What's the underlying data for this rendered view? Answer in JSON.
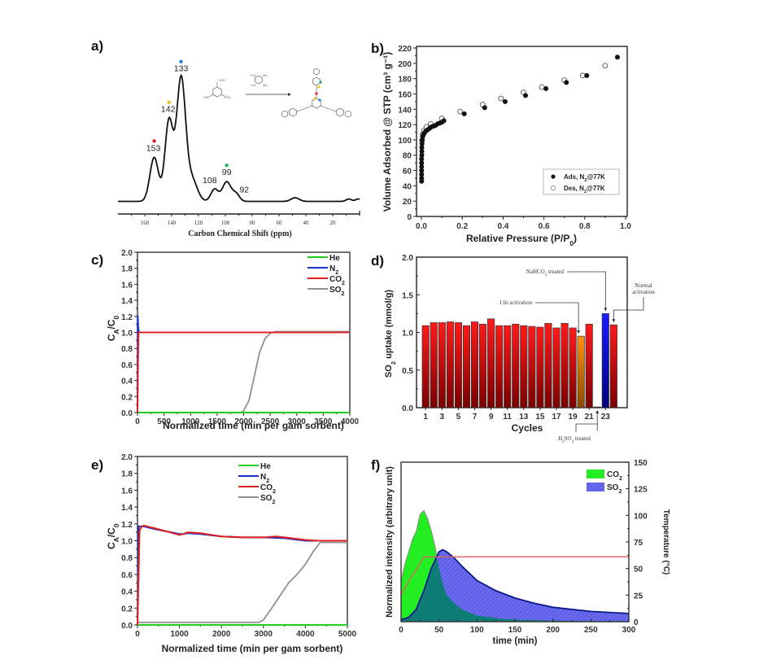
{
  "figure": {
    "panel_labels": [
      "a)",
      "b)",
      "c)",
      "d)",
      "e)",
      "f)"
    ]
  },
  "chart_data": [
    {
      "panel": "a",
      "type": "line",
      "title": "",
      "xlabel": "Carbon Chemical Shift  (ppm)",
      "ylabel": "",
      "xlim": [
        180,
        0
      ],
      "x_ticks": [
        160,
        140,
        120,
        100,
        80,
        60,
        40,
        20
      ],
      "x_tick_labels": [
        "160",
        "140",
        "120",
        "100",
        "80",
        "60",
        "40",
        "20"
      ],
      "grid": false,
      "peaks": [
        {
          "ppm": 153,
          "label": "153",
          "marker_color": "#e02020",
          "rel_height": 0.36
        },
        {
          "ppm": 142,
          "label": "142",
          "marker_color": "#f0c020",
          "rel_height": 0.66
        },
        {
          "ppm": 133,
          "label": "133",
          "marker_color": "#2080d0",
          "rel_height": 1.0
        },
        {
          "ppm": 108,
          "label": "108",
          "marker_color": "",
          "rel_height": 0.1
        },
        {
          "ppm": 99,
          "label": "99",
          "marker_color": "#20b060",
          "rel_height": 0.16
        },
        {
          "ppm": 92,
          "label": "92",
          "marker_color": "",
          "rel_height": 0.06
        }
      ],
      "minor_features_ppm": [
        48,
        8
      ],
      "annotation": "reaction scheme: trialdehyde + tetraaminobenzene → benzimidazole-linked polymer"
    },
    {
      "panel": "b",
      "type": "scatter",
      "title": "",
      "xlabel": "Relative Pressure (P/P₀)",
      "ylabel": "Volume Adsorbed @ STP (cm³ g⁻¹)",
      "xlim": [
        0,
        1.0
      ],
      "ylim": [
        0,
        220
      ],
      "x_ticks": [
        "0.0",
        "0.2",
        "0.4",
        "0.6",
        "0.8",
        "1.0"
      ],
      "y_ticks": [
        "0",
        "20",
        "40",
        "60",
        "80",
        "100",
        "120",
        "140",
        "160",
        "180",
        "200",
        "220"
      ],
      "legend_position": "bottom-right",
      "series": [
        {
          "name": "Ads, N₂@77K",
          "marker": "filled-circle",
          "x": [
            0.001,
            0.001,
            0.001,
            0.001,
            0.001,
            0.001,
            0.001,
            0.002,
            0.002,
            0.002,
            0.003,
            0.004,
            0.006,
            0.01,
            0.015,
            0.02,
            0.03,
            0.04,
            0.05,
            0.06,
            0.07,
            0.08,
            0.09,
            0.1,
            0.11,
            0.21,
            0.31,
            0.41,
            0.51,
            0.61,
            0.71,
            0.81,
            0.96
          ],
          "y": [
            46,
            50,
            55,
            60,
            65,
            70,
            75,
            80,
            85,
            90,
            95,
            100,
            104,
            107,
            109,
            111,
            113,
            115,
            117,
            118,
            119,
            121,
            122,
            123,
            125,
            134,
            142,
            150,
            158,
            167,
            175,
            184,
            208
          ]
        },
        {
          "name": "Des, N₂@77K",
          "marker": "open-circle",
          "x": [
            0.003,
            0.006,
            0.012,
            0.025,
            0.045,
            0.1,
            0.19,
            0.3,
            0.39,
            0.5,
            0.59,
            0.7,
            0.79,
            0.9
          ],
          "y": [
            99,
            107,
            112,
            117,
            121,
            128,
            137,
            146,
            154,
            162,
            169,
            178,
            184,
            197
          ]
        }
      ]
    },
    {
      "panel": "c",
      "type": "line",
      "title": "",
      "xlabel": "Normalized time (min per gam sorbent)",
      "ylabel": "Cₐ/C₀",
      "ylabel_parts": {
        "base": "C",
        "sub1": "A",
        "mid": "/C",
        "sub2": "0"
      },
      "xlim": [
        0,
        4000
      ],
      "ylim": [
        0,
        2.0
      ],
      "x_ticks": [
        "0",
        "500",
        "1000",
        "1500",
        "2000",
        "2500",
        "3000",
        "3500",
        "4000"
      ],
      "y_ticks": [
        "0.0",
        "0.2",
        "0.4",
        "0.6",
        "0.8",
        "1.0",
        "1.2",
        "1.4",
        "1.6",
        "1.8",
        "2.0"
      ],
      "legend_position": "top-right",
      "series": [
        {
          "name": "He",
          "color": "#22cc22",
          "x": [
            0,
            4000
          ],
          "y": [
            0.0,
            0.0
          ]
        },
        {
          "name": "N₂",
          "color": "#1a2ecc",
          "x": [
            0,
            5,
            10,
            20,
            40,
            4000
          ],
          "y": [
            0,
            1.21,
            1.1,
            1.02,
            1.0,
            1.0
          ]
        },
        {
          "name": "CO₂",
          "color": "#e02020",
          "x": [
            0,
            10,
            20,
            40,
            4000
          ],
          "y": [
            0,
            0.65,
            1.0,
            1.0,
            1.0
          ]
        },
        {
          "name": "SO₂",
          "color": "#909090",
          "x": [
            0,
            1950,
            2000,
            2100,
            2200,
            2250,
            2300,
            2400,
            2500,
            2600,
            2700,
            4000
          ],
          "y": [
            0.0,
            0.0,
            0.02,
            0.15,
            0.45,
            0.6,
            0.75,
            0.92,
            0.99,
            1.01,
            1.01,
            1.01
          ]
        }
      ]
    },
    {
      "panel": "d",
      "type": "bar",
      "title": "",
      "xlabel": "Cycles",
      "ylabel": "SO₂ uptake (mmol/g)",
      "ylim": [
        0,
        2.0
      ],
      "y_ticks": [
        "0.0",
        "0.5",
        "1.0",
        "1.5",
        "2.0"
      ],
      "x_tick_labels": [
        "1",
        "3",
        "5",
        "7",
        "9",
        "11",
        "13",
        "15",
        "17",
        "19",
        "21",
        "23"
      ],
      "categories": [
        1,
        2,
        3,
        4,
        5,
        6,
        7,
        8,
        9,
        10,
        11,
        12,
        13,
        14,
        15,
        16,
        17,
        18,
        19,
        20,
        21,
        22,
        23,
        24
      ],
      "values": [
        1.09,
        1.13,
        1.13,
        1.14,
        1.13,
        1.09,
        1.14,
        1.11,
        1.18,
        1.09,
        1.09,
        1.11,
        1.09,
        1.08,
        1.07,
        1.12,
        1.06,
        1.12,
        1.06,
        0.95,
        1.11,
        0.01,
        1.25,
        1.1
      ],
      "bar_colors": [
        "red",
        "red",
        "red",
        "red",
        "red",
        "red",
        "red",
        "red",
        "red",
        "red",
        "red",
        "red",
        "red",
        "red",
        "red",
        "red",
        "red",
        "red",
        "red",
        "orange",
        "red",
        "red",
        "blue",
        "red"
      ],
      "palette": {
        "red": "#ee1111",
        "orange": "#ff8c00",
        "blue": "#1111dd"
      },
      "annotations": [
        {
          "text": "1 hr activation",
          "target_cycle": 20
        },
        {
          "text": "NaHCO₃ treated",
          "target_cycle": 23
        },
        {
          "text": "Normal activation",
          "target_cycle": 24
        },
        {
          "text": "H₂SO₄ treated",
          "target_cycle": 22
        }
      ]
    },
    {
      "panel": "e",
      "type": "line",
      "title": "",
      "xlabel": "Normalized time (min per gam sorbent)",
      "ylabel": "Cₐ/C₀",
      "ylabel_parts": {
        "base": "C",
        "sub1": "A",
        "mid": "/C",
        "sub2": "0"
      },
      "xlim": [
        0,
        5000
      ],
      "ylim": [
        0,
        2.0
      ],
      "x_ticks": [
        "0",
        "1000",
        "2000",
        "3000",
        "4000",
        "5000"
      ],
      "y_ticks": [
        "0.0",
        "0.2",
        "0.4",
        "0.6",
        "0.8",
        "1.0",
        "1.2",
        "1.4",
        "1.6",
        "1.8",
        "2.0"
      ],
      "legend_position": "top-center",
      "series": [
        {
          "name": "He",
          "color": "#22cc22",
          "x": [
            0,
            5000
          ],
          "y": [
            0.0,
            0.0
          ]
        },
        {
          "name": "N₂",
          "color": "#1a2ecc",
          "x": [
            0,
            30,
            80,
            150,
            400,
            700,
            1000,
            1100,
            1200,
            1500,
            2000,
            2500,
            3000,
            3500,
            4000,
            4300,
            5000
          ],
          "y": [
            0,
            1.17,
            1.17,
            1.17,
            1.14,
            1.11,
            1.08,
            1.08,
            1.09,
            1.08,
            1.05,
            1.04,
            1.04,
            1.03,
            1.0,
            1.0,
            1.0
          ]
        },
        {
          "name": "CO₂",
          "color": "#e02020",
          "x": [
            0,
            50,
            100,
            150,
            400,
            700,
            1000,
            1100,
            1200,
            1500,
            2000,
            2500,
            3000,
            3300,
            3500,
            4000,
            4300,
            5000
          ],
          "y": [
            0,
            1.12,
            1.17,
            1.18,
            1.15,
            1.11,
            1.07,
            1.08,
            1.1,
            1.09,
            1.05,
            1.04,
            1.04,
            1.05,
            1.04,
            1.01,
            1.0,
            1.0
          ]
        },
        {
          "name": "SO₂",
          "color": "#909090",
          "x": [
            0,
            2900,
            3000,
            3200,
            3400,
            3600,
            3800,
            4000,
            4200,
            4350,
            4450,
            5000
          ],
          "y": [
            0.03,
            0.03,
            0.06,
            0.2,
            0.35,
            0.5,
            0.6,
            0.72,
            0.88,
            0.98,
            0.98,
            0.98
          ]
        }
      ]
    },
    {
      "panel": "f",
      "type": "area",
      "title": "",
      "xlabel": "time (min)",
      "ylabel": "Normalized intensity (arbitrary unit)",
      "y2label": "Temperature (°C)",
      "xlim": [
        0,
        300
      ],
      "y2lim": [
        0,
        150
      ],
      "x_ticks": [
        "0",
        "50",
        "100",
        "150",
        "200",
        "250",
        "300"
      ],
      "y2_ticks": [
        "0",
        "25",
        "50",
        "75",
        "100",
        "125",
        "150"
      ],
      "legend_position": "top-right",
      "series": [
        {
          "name": "CO₂",
          "color": "#22ee22",
          "fill": "solid",
          "x": [
            0,
            5,
            10,
            15,
            20,
            25,
            30,
            35,
            40,
            45,
            50,
            55,
            60,
            70,
            80,
            100,
            130,
            150,
            200,
            250,
            300
          ],
          "y_rel": [
            0.2,
            0.28,
            0.34,
            0.4,
            0.44,
            0.52,
            0.54,
            0.5,
            0.44,
            0.36,
            0.26,
            0.18,
            0.13,
            0.09,
            0.06,
            0.03,
            0.015,
            0.01,
            0.005,
            0.003,
            0.002
          ]
        },
        {
          "name": "SO₂",
          "color": "#5555ee",
          "fill": "hatched",
          "x": [
            0,
            10,
            20,
            30,
            40,
            50,
            55,
            60,
            70,
            80,
            100,
            125,
            150,
            175,
            200,
            250,
            300
          ],
          "y_rel": [
            0.01,
            0.02,
            0.06,
            0.15,
            0.26,
            0.34,
            0.35,
            0.34,
            0.31,
            0.27,
            0.2,
            0.15,
            0.115,
            0.09,
            0.07,
            0.05,
            0.04
          ]
        },
        {
          "name": "Temperature",
          "axis": "right",
          "color": "#e06060",
          "x": [
            0,
            10,
            20,
            30,
            300
          ],
          "y": [
            25,
            38,
            49,
            61,
            61
          ]
        }
      ]
    }
  ]
}
